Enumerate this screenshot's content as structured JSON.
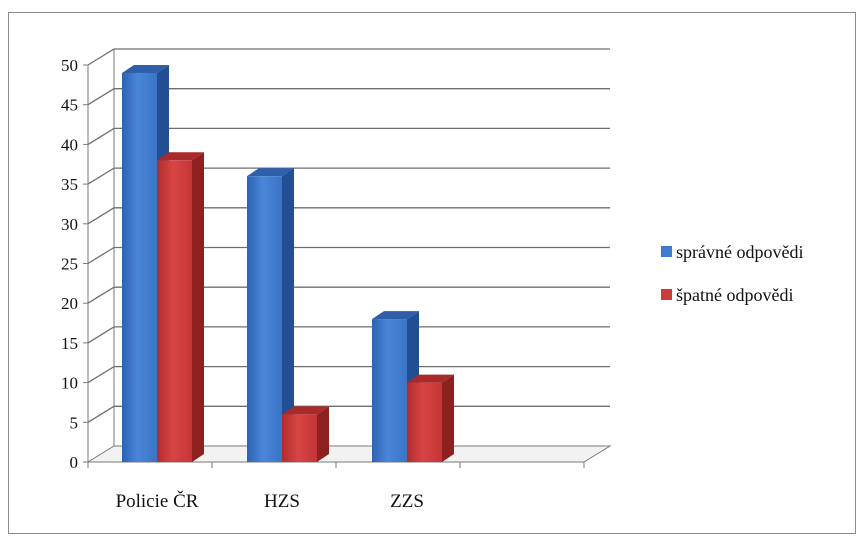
{
  "chart_data": {
    "type": "bar",
    "categories": [
      "Policie ČR",
      "HZS",
      "ZZS"
    ],
    "series": [
      {
        "name": "správné odpovědi",
        "values": [
          49,
          36,
          18
        ],
        "color": "#3d7bd1"
      },
      {
        "name": "špatné odpovědi",
        "values": [
          38,
          6,
          10
        ],
        "color": "#cc3a3a"
      }
    ],
    "yticks": [
      0,
      5,
      10,
      15,
      20,
      25,
      30,
      35,
      40,
      45,
      50
    ],
    "ylim": [
      0,
      50
    ],
    "grid": true,
    "legend_position": "right"
  }
}
